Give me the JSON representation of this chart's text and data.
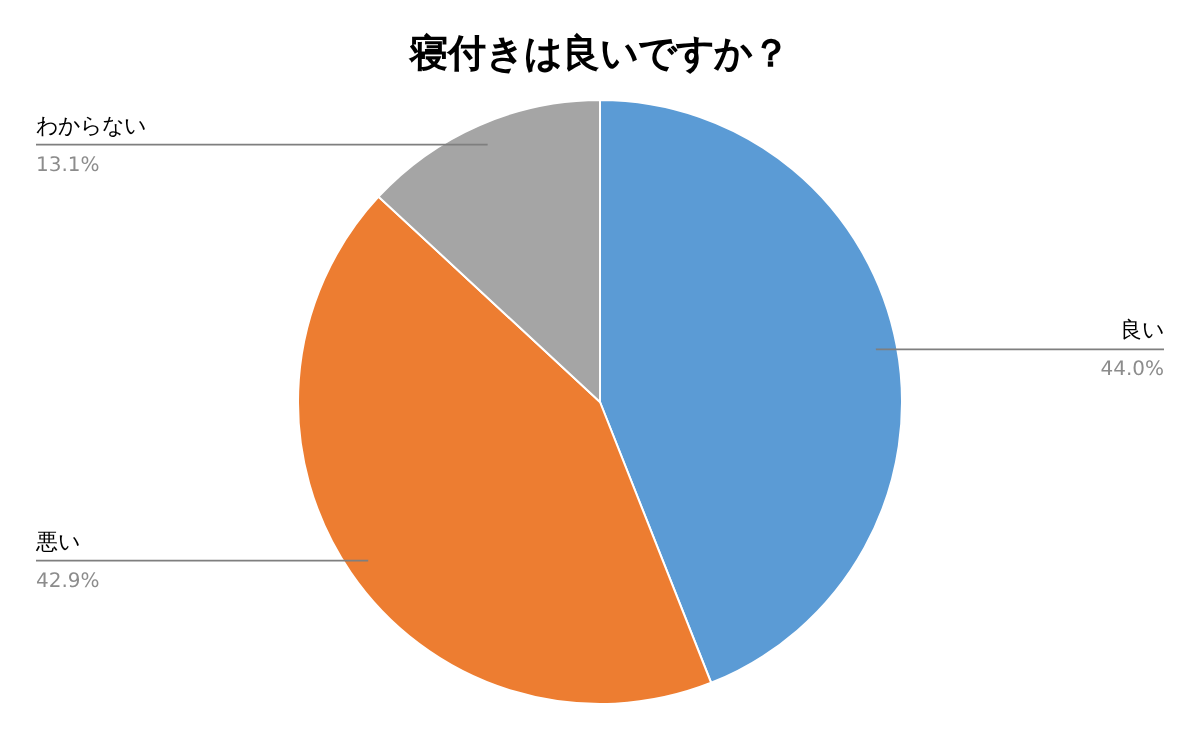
{
  "chart_data": {
    "type": "pie",
    "title": "寝付きは良いですか？",
    "categories": [
      "良い",
      "悪い",
      "わからない"
    ],
    "values": [
      44.0,
      42.9,
      13.1
    ],
    "colors": [
      "#5b9bd5",
      "#ed7d31",
      "#a5a5a5"
    ],
    "value_labels": [
      "44.0%",
      "42.9%",
      "13.1%"
    ],
    "legend": false
  }
}
